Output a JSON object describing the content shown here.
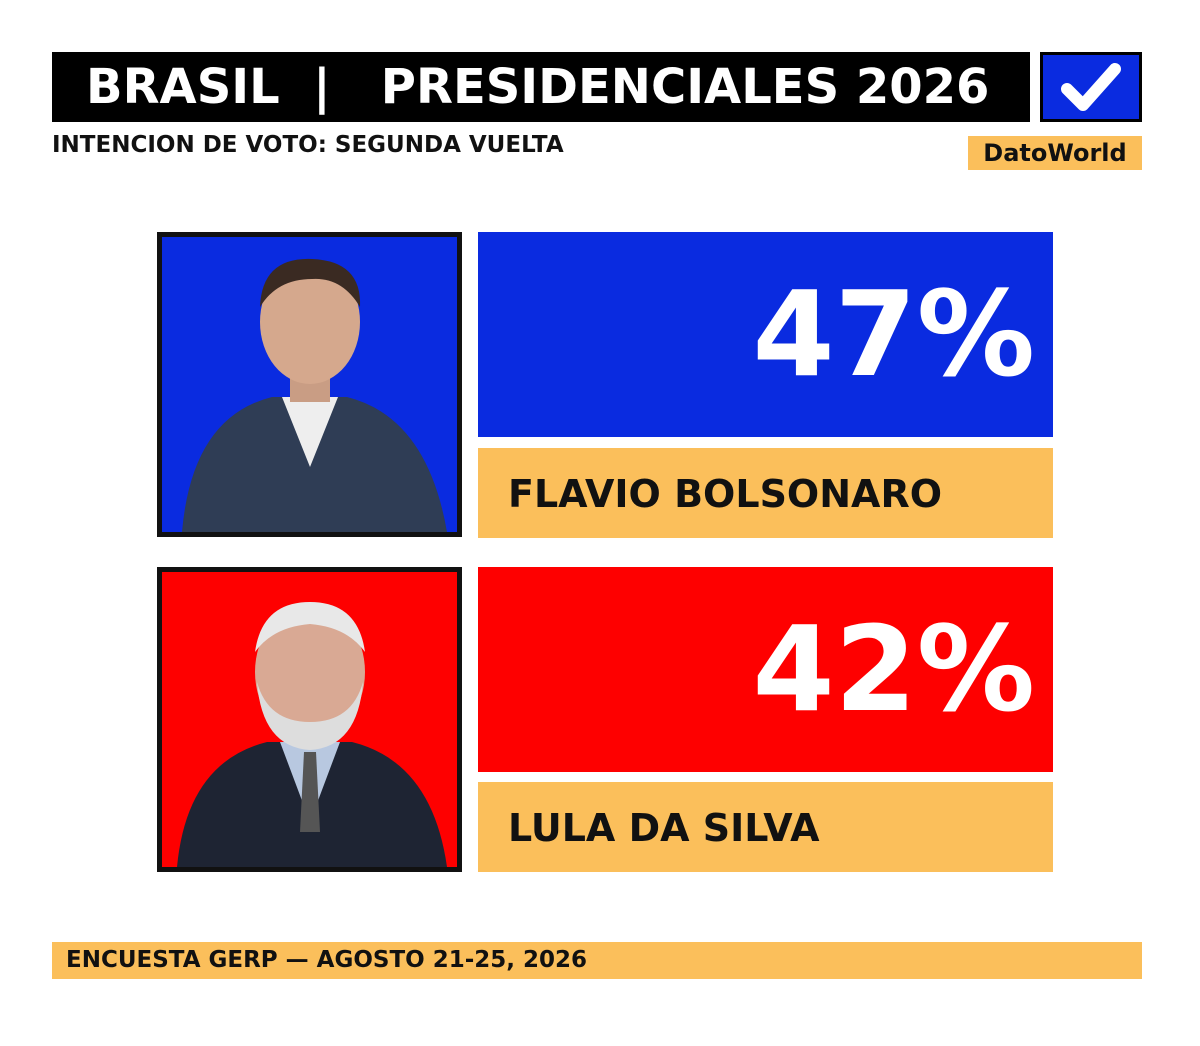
{
  "header": {
    "title": "BRASIL  |   PRESIDENCIALES 2026",
    "subtitle": "INTENCION DE VOTO: SEGUNDA VUELTA",
    "brand": "DatoWorld"
  },
  "candidates": [
    {
      "name": "FLAVIO BOLSONARO",
      "percent": "47%"
    },
    {
      "name": "LULA DA SILVA",
      "percent": "42%"
    }
  ],
  "footer": "ENCUESTA GERP — AGOSTO 21-25, 2026"
}
